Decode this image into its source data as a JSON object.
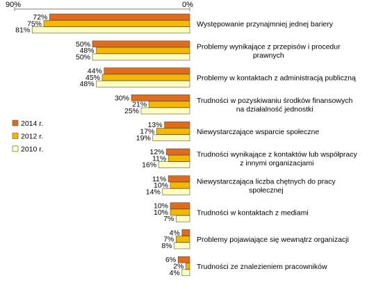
{
  "chart_data": {
    "type": "bar",
    "orientation": "horizontal",
    "direction": "right-to-left",
    "xlim": [
      90,
      0
    ],
    "x_tick_labels": [
      "90%",
      "0%"
    ],
    "categories": [
      [
        "Występowanie przynajmniej jednej bariery"
      ],
      [
        "Problemy wynikające z przepisów i procedur",
        "prawnych"
      ],
      [
        "Problemy w kontaktach z administracją publiczną"
      ],
      [
        "Trudności w pozyskiwaniu środków finansowych",
        "na działalność jednostki"
      ],
      [
        "Niewystarczające wsparcie społeczne"
      ],
      [
        "Trudności wynikające z kontaktów lub współpracy",
        "z innymi organizacjami"
      ],
      [
        "Niewystarczająca liczba chętnych do pracy",
        "społecznej"
      ],
      [
        "Trudności w kontaktach z mediami"
      ],
      [
        "Problemy pojawiające się wewnątrz organizacji"
      ],
      [
        "Trudności ze znalezieniem pracowników"
      ]
    ],
    "series": [
      {
        "name": "2014 r.",
        "color": "#e06b1a",
        "values": [
          72,
          50,
          44,
          30,
          13,
          12,
          11,
          10,
          4,
          6
        ]
      },
      {
        "name": "2012 r.",
        "color": "#f5b800",
        "values": [
          75,
          48,
          45,
          21,
          17,
          11,
          10,
          10,
          7,
          2
        ]
      },
      {
        "name": "2010 r.",
        "color": "#ffffbf",
        "values": [
          81,
          50,
          48,
          25,
          19,
          16,
          14,
          7,
          8,
          4
        ]
      }
    ],
    "value_suffix": "%",
    "legend_position": "left",
    "grid": false
  }
}
